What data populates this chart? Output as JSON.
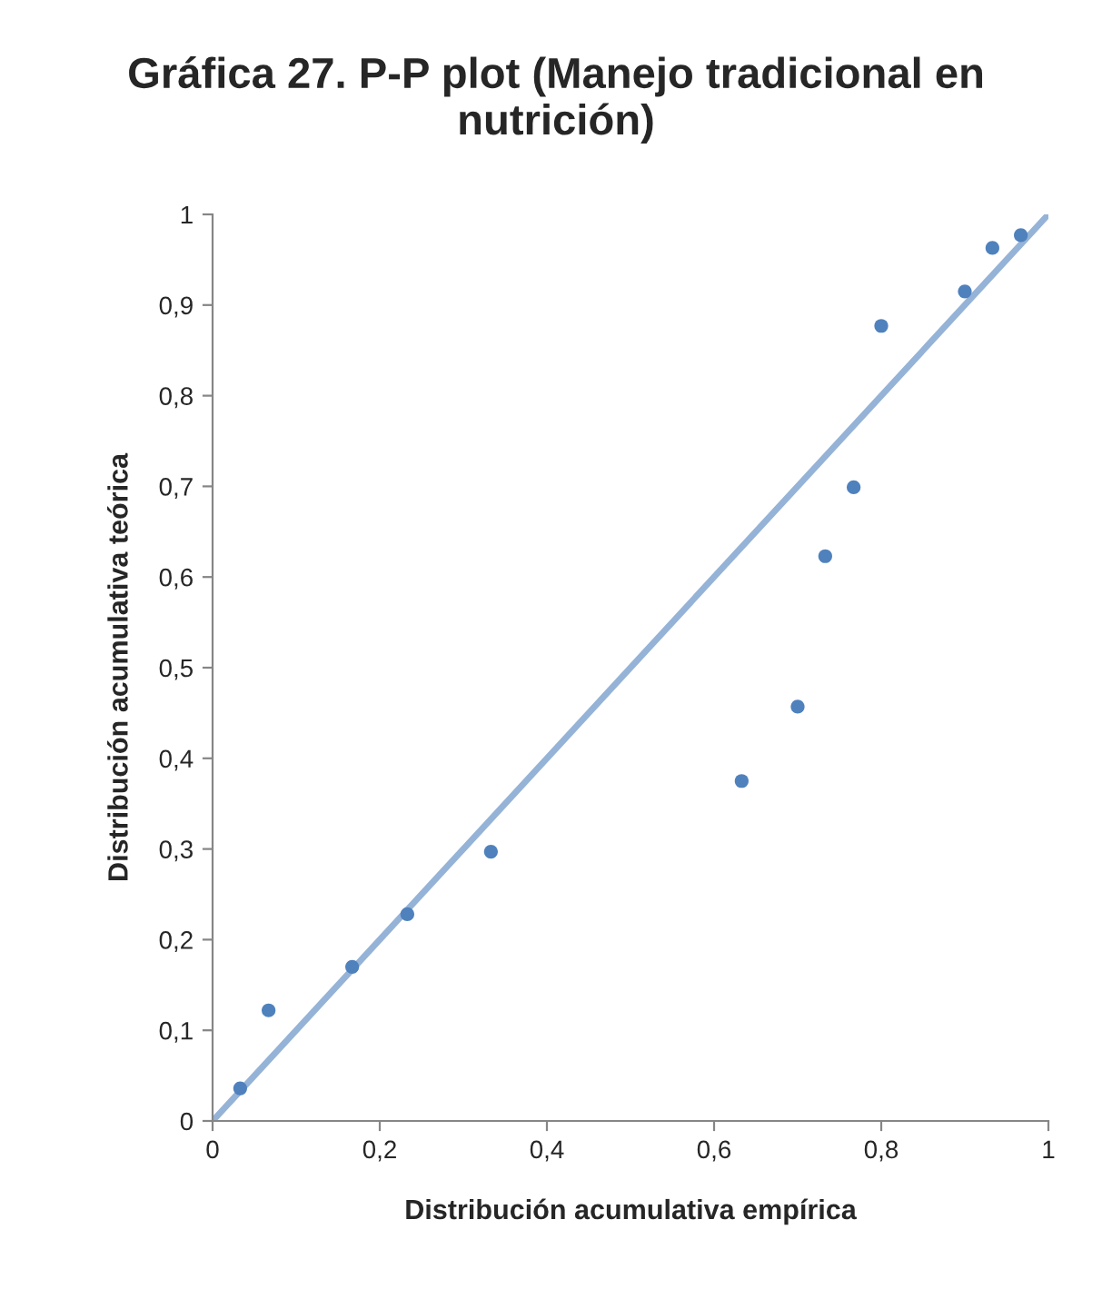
{
  "chart_data": {
    "type": "scatter",
    "title": "Gráfica 27. P-P plot (Manejo tradicional en nutrición)",
    "xlabel": "Distribución acumulativa empírica",
    "ylabel": "Distribución acumulativa teórica",
    "series": [
      {
        "type": "line",
        "color": "#95b3d7",
        "x": [
          0,
          1
        ],
        "values": [
          0,
          1
        ]
      },
      {
        "color": "#4f81bd",
        "marker": "circle",
        "x": [
          0.033,
          0.067,
          0.167,
          0.233,
          0.333,
          0.633,
          0.7,
          0.733,
          0.767,
          0.8,
          0.9,
          0.933,
          0.967
        ],
        "values": [
          0.036,
          0.122,
          0.17,
          0.228,
          0.297,
          0.375,
          0.457,
          0.623,
          0.699,
          0.877,
          0.915,
          0.963,
          0.977
        ]
      }
    ],
    "xlim": [
      0,
      1
    ],
    "ylim": [
      0,
      1
    ],
    "xticks": [
      0,
      {
        "value": 0.2,
        "label": "0,2"
      },
      {
        "value": 0.4,
        "label": "0,4"
      },
      {
        "value": 0.6,
        "label": "0,6"
      },
      {
        "value": 0.8,
        "label": "0,8"
      },
      1
    ],
    "yticks": [
      0,
      {
        "value": 0.1,
        "label": "0,1"
      },
      {
        "value": 0.2,
        "label": "0,2"
      },
      {
        "value": 0.3,
        "label": "0,3"
      },
      {
        "value": 0.4,
        "label": "0,4"
      },
      {
        "value": 0.5,
        "label": "0,5"
      },
      {
        "value": 0.6,
        "label": "0,6"
      },
      {
        "value": 0.7,
        "label": "0,7"
      },
      {
        "value": 0.8,
        "label": "0,8"
      },
      {
        "value": 0.9,
        "label": "0,9"
      },
      1
    ],
    "grid": false,
    "legend": false
  }
}
